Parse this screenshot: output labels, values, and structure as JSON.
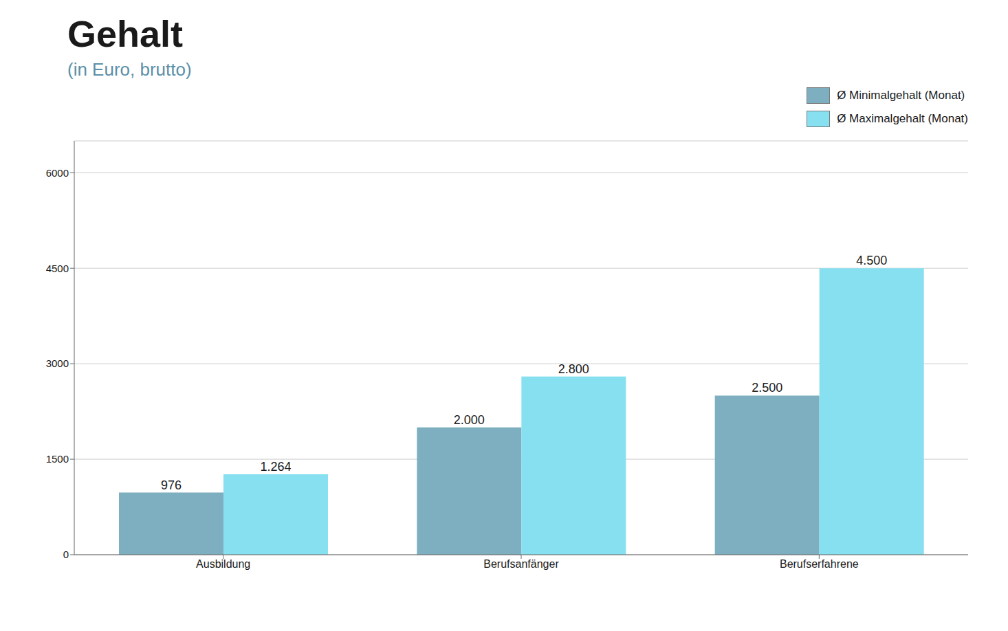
{
  "chart_data": {
    "type": "bar",
    "title": "Gehalt",
    "subtitle": "(in Euro, brutto)",
    "categories": [
      "Ausbildung",
      "Berufsanfänger",
      "Berufserfahrene"
    ],
    "series": [
      {
        "name": "Ø Minimalgehalt (Monat)",
        "color": "#7eafc0",
        "values": [
          976,
          2000,
          2500
        ],
        "value_labels": [
          "976",
          "2.000",
          "2.500"
        ]
      },
      {
        "name": "Ø Maximalgehalt (Monat)",
        "color": "#87e0f0",
        "values": [
          1264,
          2800,
          4500
        ],
        "value_labels": [
          "1.264",
          "2.800",
          "4.500"
        ]
      }
    ],
    "ylim": [
      0,
      6500
    ],
    "yticks": [
      0,
      1500,
      3000,
      4500,
      6000
    ],
    "grid": true,
    "legend": "upper right",
    "data_labels": true
  }
}
